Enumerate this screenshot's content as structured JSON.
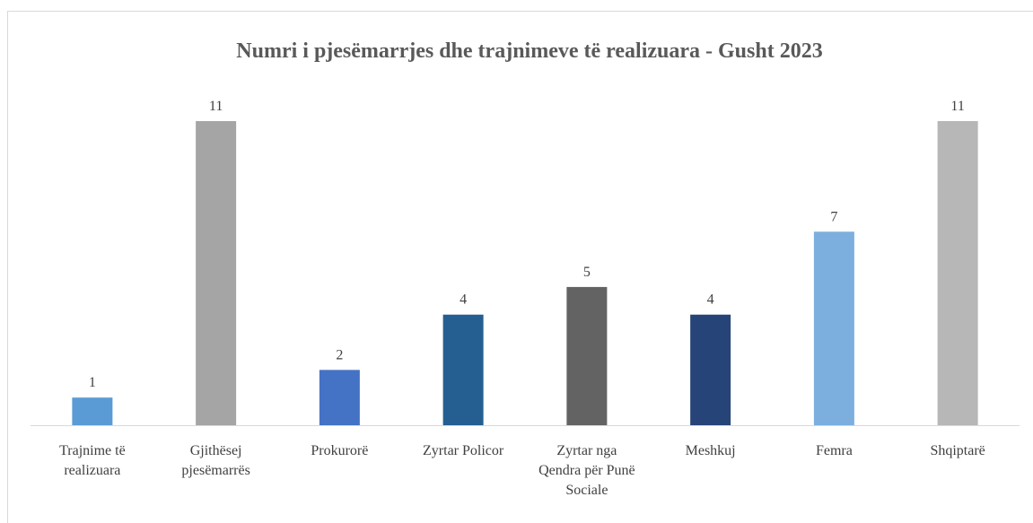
{
  "chart_data": {
    "type": "bar",
    "title": "Numri i pjesëmarrjes dhe trajnimeve të realizuara - Gusht 2023",
    "categories": [
      "Trajnime të realizuara",
      "Gjithësej pjesëmarrës",
      "Prokurorë",
      "Zyrtar Policor",
      "Zyrtar nga Qendra për Punë Sociale",
      "Meshkuj",
      "Femra",
      "Shqiptarë"
    ],
    "values": [
      1,
      11,
      2,
      4,
      5,
      4,
      7,
      11
    ],
    "colors": [
      "#5b9bd5",
      "#a5a5a5",
      "#4472c4",
      "#255e91",
      "#636363",
      "#264478",
      "#7cafdd",
      "#b7b7b7"
    ],
    "grid": false
  }
}
